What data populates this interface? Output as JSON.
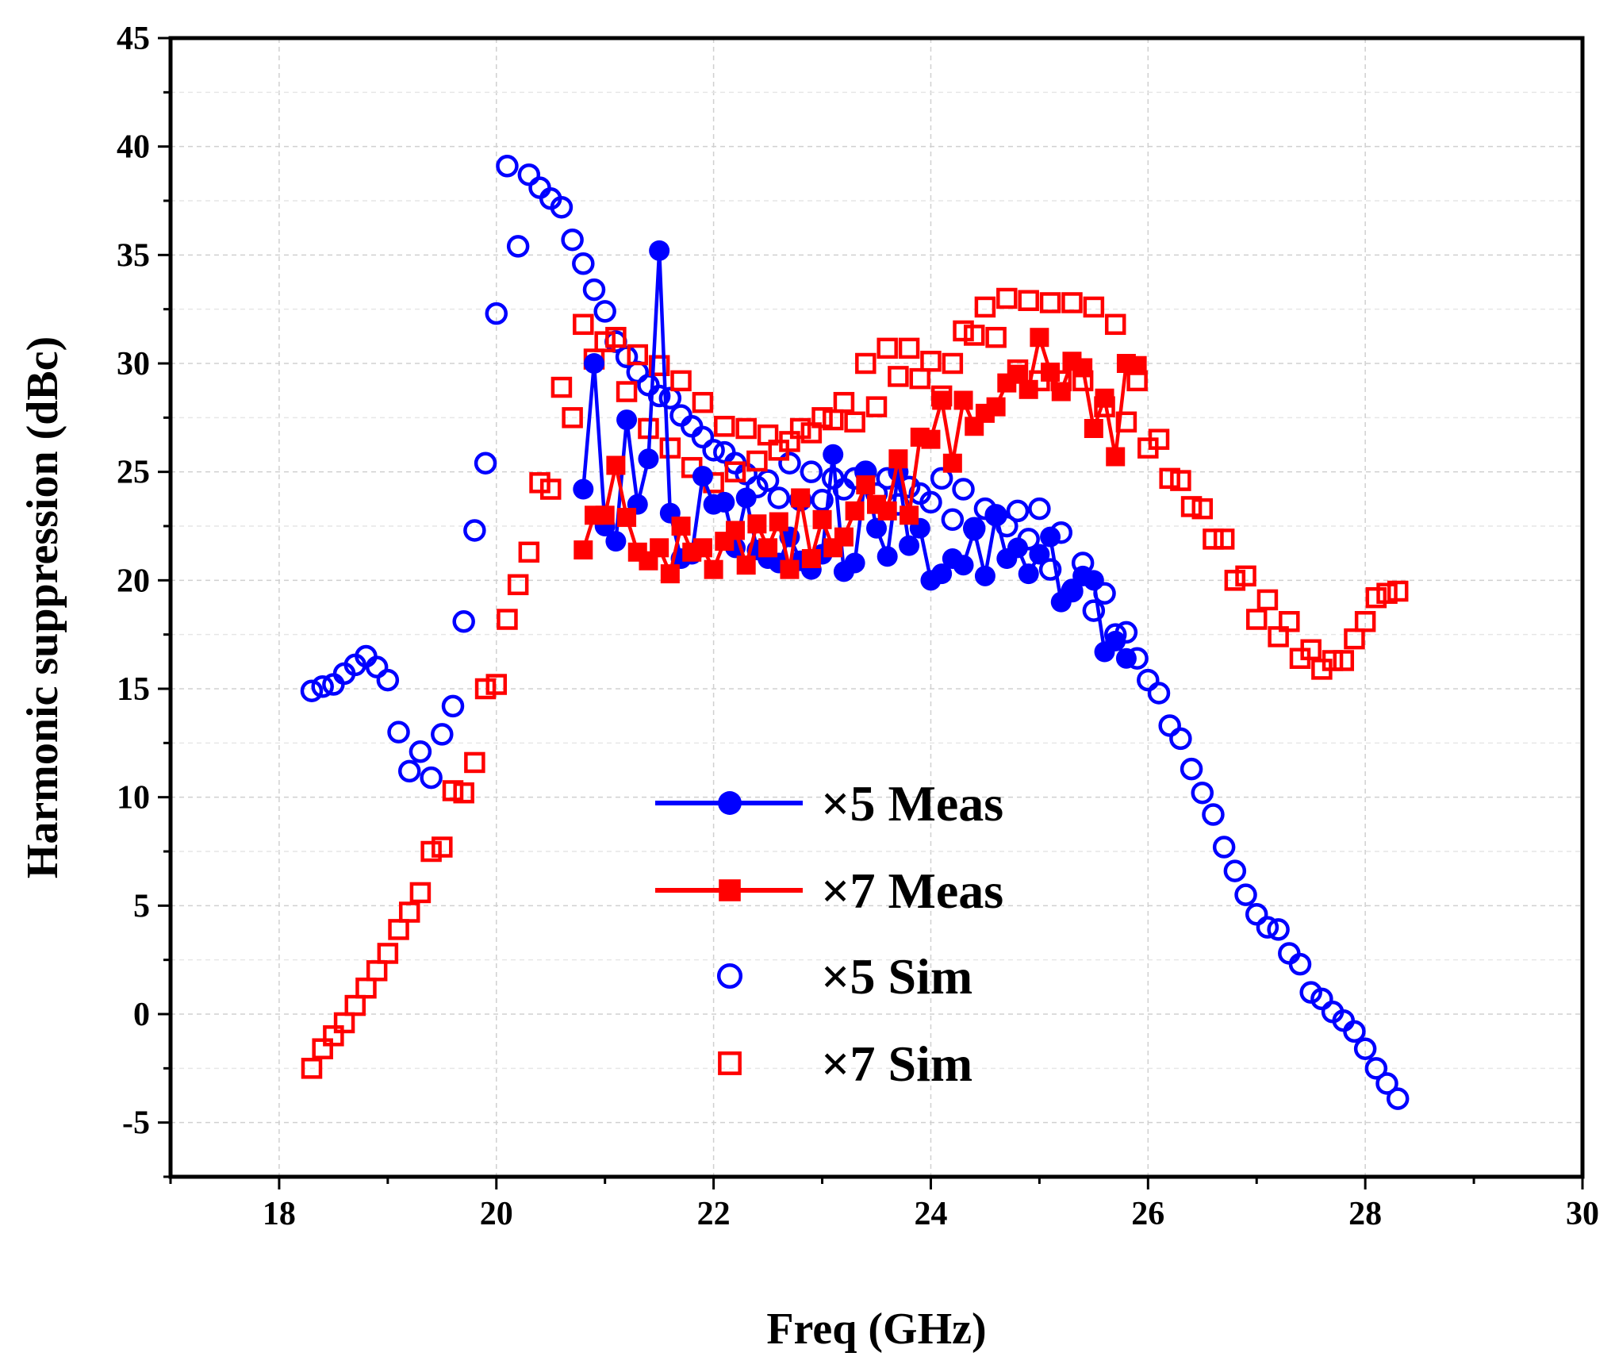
{
  "chart_data": {
    "type": "scatter",
    "xlabel": "Freq (GHz)",
    "ylabel": "Harmonic suppression (dBc)",
    "xlim": [
      17,
      30
    ],
    "ylim": [
      -7.5,
      45
    ],
    "x_ticks": [
      "18",
      "20",
      "22",
      "24",
      "26",
      "28",
      "30"
    ],
    "y_ticks": [
      "-5",
      "0",
      "5",
      "10",
      "15",
      "20",
      "25",
      "30",
      "35",
      "40",
      "45"
    ],
    "grid": true,
    "legend_position": "center-bottom",
    "series": [
      {
        "name": "×5 Meas",
        "style": "line-filled-circle",
        "color": "#0000ff",
        "x": [
          20.8,
          20.9,
          21.0,
          21.1,
          21.2,
          21.3,
          21.4,
          21.5,
          21.6,
          21.7,
          21.8,
          21.9,
          22.0,
          22.1,
          22.2,
          22.3,
          22.4,
          22.5,
          22.6,
          22.7,
          22.8,
          22.9,
          23.0,
          23.1,
          23.2,
          23.3,
          23.4,
          23.5,
          23.6,
          23.7,
          23.8,
          23.9,
          24.0,
          24.1,
          24.2,
          24.3,
          24.4,
          24.5,
          24.6,
          24.7,
          24.8,
          24.9,
          25.0,
          25.1,
          25.2,
          25.3,
          25.4,
          25.5,
          25.6,
          25.7,
          25.8
        ],
        "y": [
          24.2,
          30.0,
          22.5,
          21.8,
          27.4,
          23.5,
          25.6,
          35.2,
          23.1,
          21.0,
          21.2,
          24.8,
          23.5,
          23.6,
          21.5,
          23.8,
          21.4,
          21.0,
          20.8,
          22.0,
          20.9,
          20.5,
          21.2,
          25.8,
          20.4,
          20.8,
          24.9,
          22.4,
          21.1,
          25.0,
          21.6,
          22.4,
          20.0,
          20.3,
          21.0,
          20.7,
          22.3,
          20.2,
          23.0,
          21.0,
          21.5,
          20.3,
          21.2,
          22.0,
          19.0,
          19.6,
          20.2,
          20.0,
          16.7,
          17.2,
          16.4
        ]
      },
      {
        "name": "×7 Meas",
        "style": "line-filled-square",
        "color": "#ff0000",
        "x": [
          20.8,
          20.9,
          21.0,
          21.1,
          21.2,
          21.3,
          21.4,
          21.5,
          21.6,
          21.7,
          21.8,
          21.9,
          22.0,
          22.1,
          22.2,
          22.3,
          22.4,
          22.5,
          22.6,
          22.7,
          22.8,
          22.9,
          23.0,
          23.1,
          23.2,
          23.3,
          23.4,
          23.5,
          23.6,
          23.7,
          23.8,
          23.9,
          24.0,
          24.1,
          24.2,
          24.3,
          24.4,
          24.5,
          24.6,
          24.7,
          24.8,
          24.9,
          25.0,
          25.1,
          25.2,
          25.3,
          25.4,
          25.5,
          25.6,
          25.7,
          25.8,
          25.9
        ],
        "y": [
          21.4,
          23.0,
          23.0,
          25.3,
          22.9,
          21.3,
          20.9,
          21.5,
          20.3,
          22.5,
          21.3,
          21.5,
          20.5,
          21.8,
          22.3,
          20.7,
          22.6,
          21.5,
          22.7,
          20.5,
          23.8,
          21.0,
          22.8,
          21.5,
          22.0,
          23.2,
          24.4,
          23.5,
          23.2,
          25.6,
          23.0,
          26.6,
          26.5,
          28.3,
          25.4,
          28.3,
          27.1,
          27.7,
          28.0,
          29.1,
          29.5,
          28.8,
          31.2,
          29.6,
          28.7,
          30.1,
          29.8,
          27.0,
          28.4,
          25.7,
          30.0,
          29.9
        ]
      },
      {
        "name": "×5 Sim",
        "style": "open-circle",
        "color": "#0000ff",
        "x": [
          18.3,
          18.4,
          18.5,
          18.6,
          18.7,
          18.8,
          18.9,
          19.0,
          19.1,
          19.2,
          19.3,
          19.4,
          19.5,
          19.6,
          19.7,
          19.8,
          19.9,
          20.0,
          20.1,
          20.2,
          20.3,
          20.4,
          20.5,
          20.6,
          20.7,
          20.8,
          20.9,
          21.0,
          21.1,
          21.2,
          21.3,
          21.4,
          21.5,
          21.6,
          21.7,
          21.8,
          21.9,
          22.0,
          22.1,
          22.2,
          22.3,
          22.4,
          22.5,
          22.6,
          22.7,
          22.8,
          22.9,
          23.0,
          23.1,
          23.2,
          23.3,
          23.4,
          23.5,
          23.6,
          23.7,
          23.8,
          23.9,
          24.0,
          24.1,
          24.2,
          24.3,
          24.4,
          24.5,
          24.6,
          24.7,
          24.8,
          24.9,
          25.0,
          25.1,
          25.2,
          25.3,
          25.4,
          25.5,
          25.6,
          25.7,
          25.8,
          25.9,
          26.0,
          26.1,
          26.2,
          26.3,
          26.4,
          26.5,
          26.6,
          26.7,
          26.8,
          26.9,
          27.0,
          27.1,
          27.2,
          27.3,
          27.4,
          27.5,
          27.6,
          27.7,
          27.8,
          27.9,
          28.0,
          28.1,
          28.2,
          28.3
        ],
        "y": [
          14.9,
          15.1,
          15.2,
          15.7,
          16.1,
          16.5,
          16.0,
          15.4,
          13.0,
          11.2,
          12.1,
          10.9,
          12.9,
          14.2,
          18.1,
          22.3,
          25.4,
          32.3,
          39.1,
          35.4,
          38.7,
          38.1,
          37.6,
          37.2,
          35.7,
          34.6,
          33.4,
          32.4,
          31.0,
          30.3,
          29.6,
          29.0,
          28.5,
          28.4,
          27.6,
          27.1,
          26.6,
          26.0,
          25.9,
          25.4,
          24.9,
          24.3,
          24.6,
          23.8,
          25.4,
          23.7,
          25.0,
          23.7,
          24.7,
          24.2,
          24.7,
          25.0,
          24.0,
          24.7,
          23.5,
          24.3,
          24.0,
          23.6,
          24.7,
          22.8,
          24.2,
          22.4,
          23.3,
          23.0,
          22.5,
          23.2,
          21.9,
          23.3,
          20.5,
          22.2,
          19.5,
          20.8,
          18.6,
          19.4,
          17.5,
          17.6,
          16.4,
          15.4,
          14.8,
          13.3,
          12.7,
          11.3,
          10.2,
          9.2,
          7.7,
          6.6,
          5.5,
          4.6,
          4.0,
          3.9,
          2.8,
          2.3,
          1.0,
          0.7,
          0.1,
          -0.3,
          -0.8,
          -1.6,
          -2.5,
          -3.2,
          -3.9
        ]
      },
      {
        "name": "×7 Sim",
        "style": "open-square",
        "color": "#ff0000",
        "x": [
          18.3,
          18.4,
          18.5,
          18.6,
          18.7,
          18.8,
          18.9,
          19.0,
          19.1,
          19.2,
          19.3,
          19.4,
          19.5,
          19.6,
          19.7,
          19.8,
          19.9,
          20.0,
          20.1,
          20.2,
          20.3,
          20.4,
          20.5,
          20.6,
          20.7,
          20.8,
          20.9,
          21.0,
          21.1,
          21.2,
          21.3,
          21.4,
          21.5,
          21.6,
          21.7,
          21.8,
          21.9,
          22.0,
          22.1,
          22.2,
          22.3,
          22.4,
          22.5,
          22.6,
          22.7,
          22.8,
          22.9,
          23.0,
          23.1,
          23.2,
          23.3,
          23.4,
          23.5,
          23.6,
          23.7,
          23.8,
          23.9,
          24.0,
          24.1,
          24.2,
          24.3,
          24.4,
          24.5,
          24.6,
          24.7,
          24.8,
          24.9,
          25.0,
          25.1,
          25.2,
          25.3,
          25.4,
          25.5,
          25.6,
          25.7,
          25.8,
          25.9,
          26.0,
          26.1,
          26.2,
          26.3,
          26.4,
          26.5,
          26.6,
          26.7,
          26.8,
          26.9,
          27.0,
          27.1,
          27.2,
          27.3,
          27.4,
          27.5,
          27.6,
          27.7,
          27.8,
          27.9,
          28.0,
          28.1,
          28.2,
          28.3
        ],
        "y": [
          -2.5,
          -1.6,
          -1.0,
          -0.4,
          0.4,
          1.2,
          2.0,
          2.8,
          3.9,
          4.7,
          5.6,
          7.5,
          7.7,
          10.3,
          10.2,
          11.6,
          15.0,
          15.2,
          18.2,
          19.8,
          21.3,
          24.5,
          24.2,
          28.9,
          27.5,
          31.8,
          30.2,
          31.0,
          31.2,
          28.7,
          30.4,
          27.0,
          29.9,
          26.1,
          29.2,
          25.2,
          28.2,
          24.5,
          27.1,
          25.0,
          27.0,
          25.5,
          26.7,
          26.0,
          26.4,
          27.0,
          26.8,
          27.5,
          27.4,
          28.2,
          27.3,
          30.0,
          28.0,
          30.7,
          29.4,
          30.7,
          29.3,
          30.1,
          28.5,
          30.0,
          31.5,
          31.3,
          32.6,
          31.2,
          33.0,
          29.7,
          32.9,
          29.2,
          32.8,
          29.2,
          32.8,
          29.2,
          32.6,
          28.0,
          31.8,
          27.3,
          29.2,
          26.1,
          26.5,
          24.7,
          24.6,
          23.4,
          23.3,
          21.9,
          21.9,
          20.0,
          20.2,
          18.2,
          19.1,
          17.4,
          18.1,
          16.4,
          16.8,
          15.9,
          16.3,
          16.3,
          17.3,
          18.1,
          19.2,
          19.4,
          19.5
        ]
      }
    ]
  }
}
